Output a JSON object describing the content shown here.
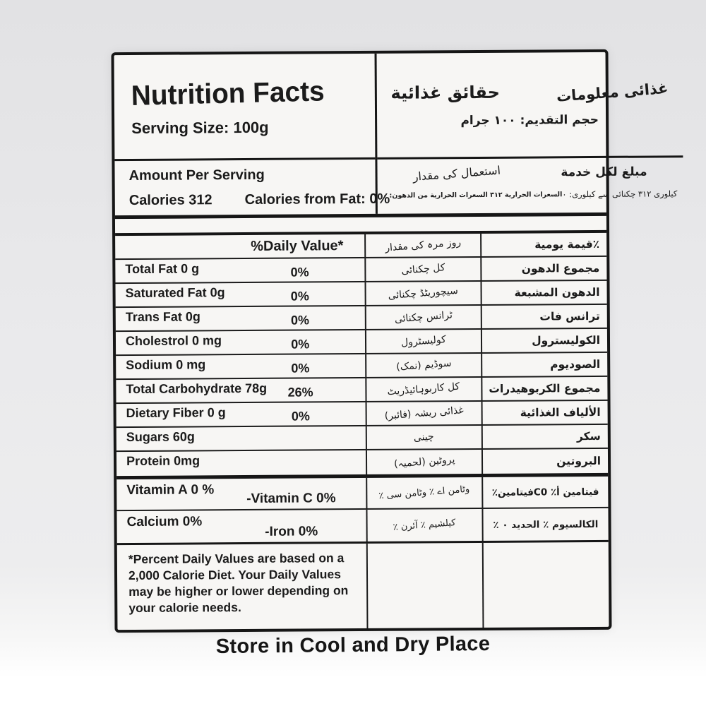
{
  "colors": {
    "ink": "#1b1b1b",
    "paper": "#f7f6f4",
    "background": "#eaeaec"
  },
  "header": {
    "title_en": "Nutrition Facts",
    "serving_size_en": "Serving Size: 100g",
    "title_ar": "حقائق غذائية",
    "title_ur": "غذائی معلومات",
    "serving_size_ar": "حجم التقديم: ١٠٠ جرام",
    "amount_per_serving_en": "Amount Per Serving",
    "calories_en": "Calories 312",
    "calories_from_fat_en": "Calories from Fat: 0%",
    "amount_per_serving_ar": "مبلغ لكل خدمة",
    "amount_per_serving_ur": "استعمال کی مقدار",
    "calories_line_ar": "السعرات الحرارية ٣١٢ السعرات الحرارية من الدهون: ٠",
    "calories_line_ur": "کیلوری ٣١٢ چکنائی سے کیلوری: ٠"
  },
  "table": {
    "daily_value_header_en": "%Daily Value*",
    "daily_value_header_ur": "روز مرہ کی مقدار",
    "daily_value_header_ar": "٪قيمة يومية",
    "rows": [
      {
        "en": "Total Fat 0 g",
        "dv": "0%",
        "ur": "کل چکنائی",
        "ar": "مجموع الدهون"
      },
      {
        "en": "Saturated Fat 0g",
        "dv": "0%",
        "ur": "سیچوریٹڈ چکنائی",
        "ar": "الدهون المشبعة"
      },
      {
        "en": "Trans Fat 0g",
        "dv": "0%",
        "ur": "ٹرانس چکنائی",
        "ar": "ترانس فات"
      },
      {
        "en": "Cholestrol 0 mg",
        "dv": "0%",
        "ur": "کولیسٹرول",
        "ar": "الكوليسترول"
      },
      {
        "en": "Sodium 0 mg",
        "dv": "0%",
        "ur": "سوڈیم (نمک)",
        "ar": "الصوديوم"
      },
      {
        "en": "Total Carbohydrate 78g",
        "dv": "26%",
        "ur": "کل کاربوہائیڈریٹ",
        "ar": "مجموع الكربوهيدرات"
      },
      {
        "en": "Dietary Fiber 0 g",
        "dv": "0%",
        "ur": "غذائی ریشہ (فائبر)",
        "ar": "الألياف الغذائية"
      },
      {
        "en": "Sugars 60g",
        "dv": "",
        "ur": "چینی",
        "ar": "سكر"
      },
      {
        "en": "Protein 0mg",
        "dv": "",
        "ur": "پروٹین (لحمیہ)",
        "ar": "البروتين"
      }
    ]
  },
  "vitamins": [
    {
      "en_left": "Vitamin A 0 %",
      "en_right": "-Vitamin C 0%",
      "ur": "وٹامن اے ٪ وٹامن سی ٪",
      "ar": "فيتامين أ٪ C0فيتامين٪"
    },
    {
      "en_left": "Calcium 0%",
      "en_right": "-Iron 0%",
      "ur": "کیلشیم ٪ آئرن ٪",
      "ar": "الكالسيوم ٪ الحديد ٠ ٪"
    }
  ],
  "footnote_en": "*Percent Daily Values are based on a 2,000 Calorie Diet. Your Daily Values may be higher or lower depending on your calorie needs.",
  "bottom_text": "Store in Cool and Dry Place"
}
